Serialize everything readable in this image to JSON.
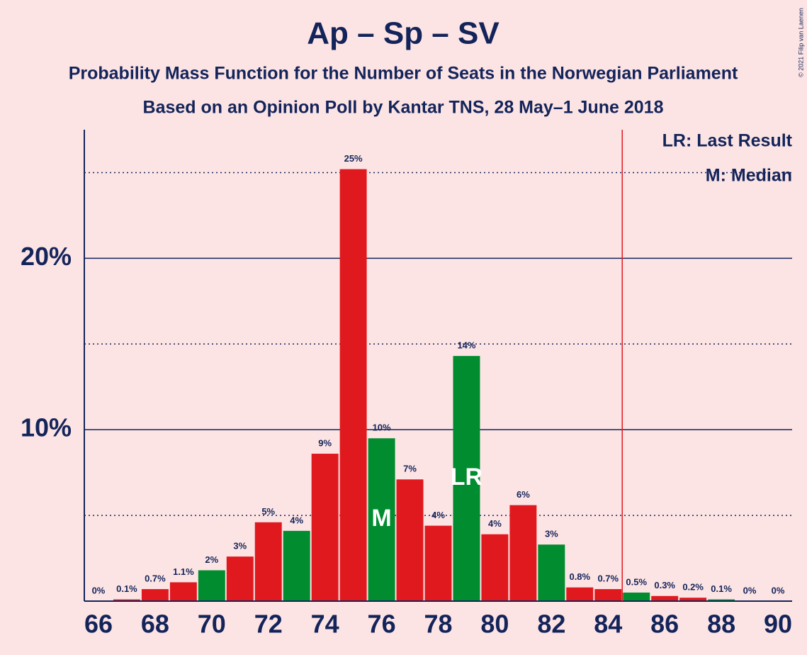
{
  "chart_data": {
    "type": "bar",
    "title": "Ap – Sp – SV",
    "subtitle": [
      "Probability Mass Function for the Number of Seats in the Norwegian Parliament",
      "Based on an Opinion Poll by Kantar TNS, 28 May–1 June 2018"
    ],
    "copyright": "© 2021 Filip van Laenen",
    "x": [
      66,
      67,
      68,
      69,
      70,
      71,
      72,
      73,
      74,
      75,
      76,
      77,
      78,
      79,
      80,
      81,
      82,
      83,
      84,
      85,
      86,
      87,
      88,
      89,
      90
    ],
    "values": [
      0,
      0.1,
      0.7,
      1.1,
      1.8,
      2.6,
      4.6,
      4.1,
      8.6,
      25.2,
      9.5,
      7.1,
      4.4,
      14.3,
      3.9,
      5.6,
      3.3,
      0.8,
      0.7,
      0.5,
      0.3,
      0.2,
      0.1,
      0,
      0
    ],
    "value_labels": [
      "0%",
      "0.1%",
      "0.7%",
      "1.1%",
      "2%",
      "3%",
      "5%",
      "4%",
      "9%",
      "25%",
      "10%",
      "7%",
      "4%",
      "14%",
      "4%",
      "6%",
      "3%",
      "0.8%",
      "0.7%",
      "0.5%",
      "0.3%",
      "0.2%",
      "0.1%",
      "0%",
      "0%"
    ],
    "colors": [
      "#e0191f",
      "#e0191f",
      "#e0191f",
      "#e0191f",
      "#008c2f",
      "#e0191f",
      "#e0191f",
      "#008c2f",
      "#e0191f",
      "#e0191f",
      "#008c2f",
      "#e0191f",
      "#e0191f",
      "#008c2f",
      "#e0191f",
      "#e0191f",
      "#008c2f",
      "#e0191f",
      "#e0191f",
      "#008c2f",
      "#e0191f",
      "#e0191f",
      "#008c2f",
      "#e0191f",
      "#e0191f"
    ],
    "xlim": [
      65.5,
      90.5
    ],
    "xticks": [
      66,
      68,
      70,
      72,
      74,
      76,
      78,
      80,
      82,
      84,
      86,
      88,
      90
    ],
    "ylim": [
      0,
      27.5
    ],
    "yticks": [
      {
        "value": 10,
        "label": "10%"
      },
      {
        "value": 20,
        "label": "20%"
      }
    ],
    "minor_yticks": [
      5,
      15,
      25
    ],
    "majority_line_x": 84.5,
    "markers": [
      {
        "x": 76,
        "label": "M"
      },
      {
        "x": 79,
        "label": "LR"
      }
    ],
    "legend": [
      "LR: Last Result",
      "M: Median"
    ]
  }
}
